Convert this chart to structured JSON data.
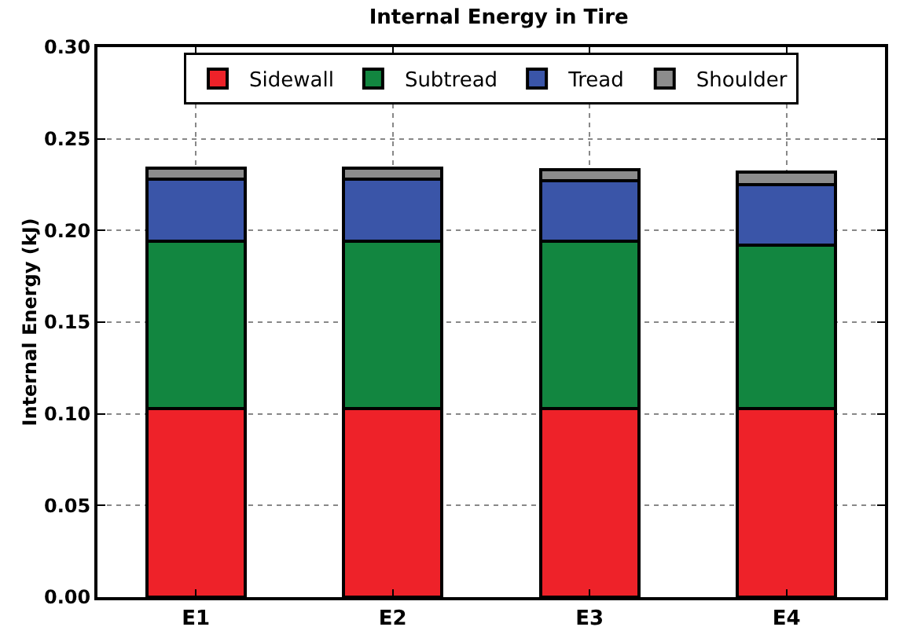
{
  "chart_data": {
    "type": "bar",
    "title": "Internal Energy in Tire",
    "ylabel": "Internal Energy (kJ)",
    "categories": [
      "E1",
      "E2",
      "E3",
      "E4"
    ],
    "stacked": true,
    "series": [
      {
        "name": "Sidewall",
        "color": "#ee2229",
        "values": [
          0.103,
          0.103,
          0.103,
          0.103
        ]
      },
      {
        "name": "Subtread",
        "color": "#128640",
        "values": [
          0.091,
          0.091,
          0.091,
          0.089
        ]
      },
      {
        "name": "Tread",
        "color": "#3a55a8",
        "values": [
          0.034,
          0.034,
          0.033,
          0.033
        ]
      },
      {
        "name": "Shoulder",
        "color": "#8c8c8c",
        "values": [
          0.006,
          0.006,
          0.006,
          0.007
        ]
      }
    ],
    "ylim": [
      0,
      0.3
    ],
    "yticks": [
      {
        "value": 0,
        "label": "0.00"
      },
      {
        "value": 0.05,
        "label": "0.05"
      },
      {
        "value": 0.1,
        "label": "0.10"
      },
      {
        "value": 0.15,
        "label": "0.15"
      },
      {
        "value": 0.2,
        "label": "0.20"
      },
      {
        "value": 0.25,
        "label": "0.25"
      },
      {
        "value": 0.3,
        "label": "0.30"
      }
    ],
    "grid": true,
    "legend": "top"
  }
}
